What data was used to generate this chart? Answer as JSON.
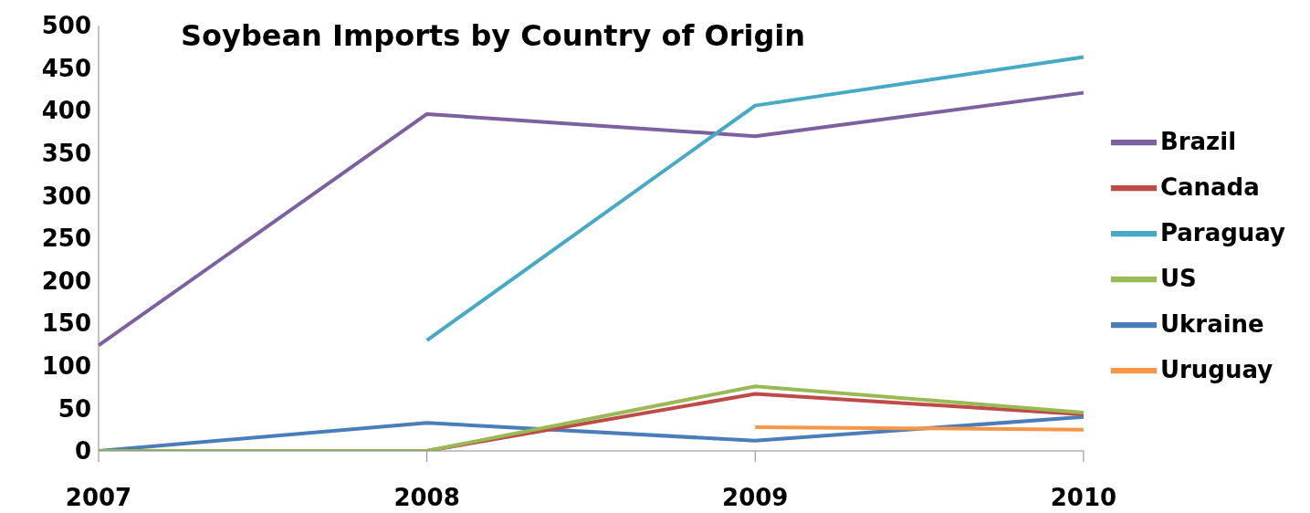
{
  "chart_data": {
    "type": "line",
    "title": "Soybean Imports by Country of Origin",
    "categories": [
      "2007",
      "2008",
      "2009",
      "2010"
    ],
    "series": [
      {
        "name": "Ukraine",
        "color": "#4a7ebb",
        "values": [
          0,
          33,
          12,
          40
        ]
      },
      {
        "name": "Canada",
        "color": "#be4b48",
        "values": [
          0,
          0,
          67,
          43
        ]
      },
      {
        "name": "US",
        "color": "#98b954",
        "values": [
          0,
          0,
          76,
          45
        ]
      },
      {
        "name": "Brazil",
        "color": "#7d60a0",
        "values": [
          124,
          396,
          370,
          421
        ]
      },
      {
        "name": "Paraguay",
        "color": "#46aac5",
        "values": [
          null,
          130,
          406,
          463
        ]
      },
      {
        "name": "Uruguay",
        "color": "#f79646",
        "values": [
          null,
          null,
          28,
          25
        ]
      }
    ],
    "ylim": [
      0,
      500
    ],
    "yticks": [
      0,
      50,
      100,
      150,
      200,
      250,
      300,
      350,
      400,
      450,
      500
    ],
    "grid": false,
    "legend": "right",
    "marker": "none",
    "line_style": "solid"
  }
}
